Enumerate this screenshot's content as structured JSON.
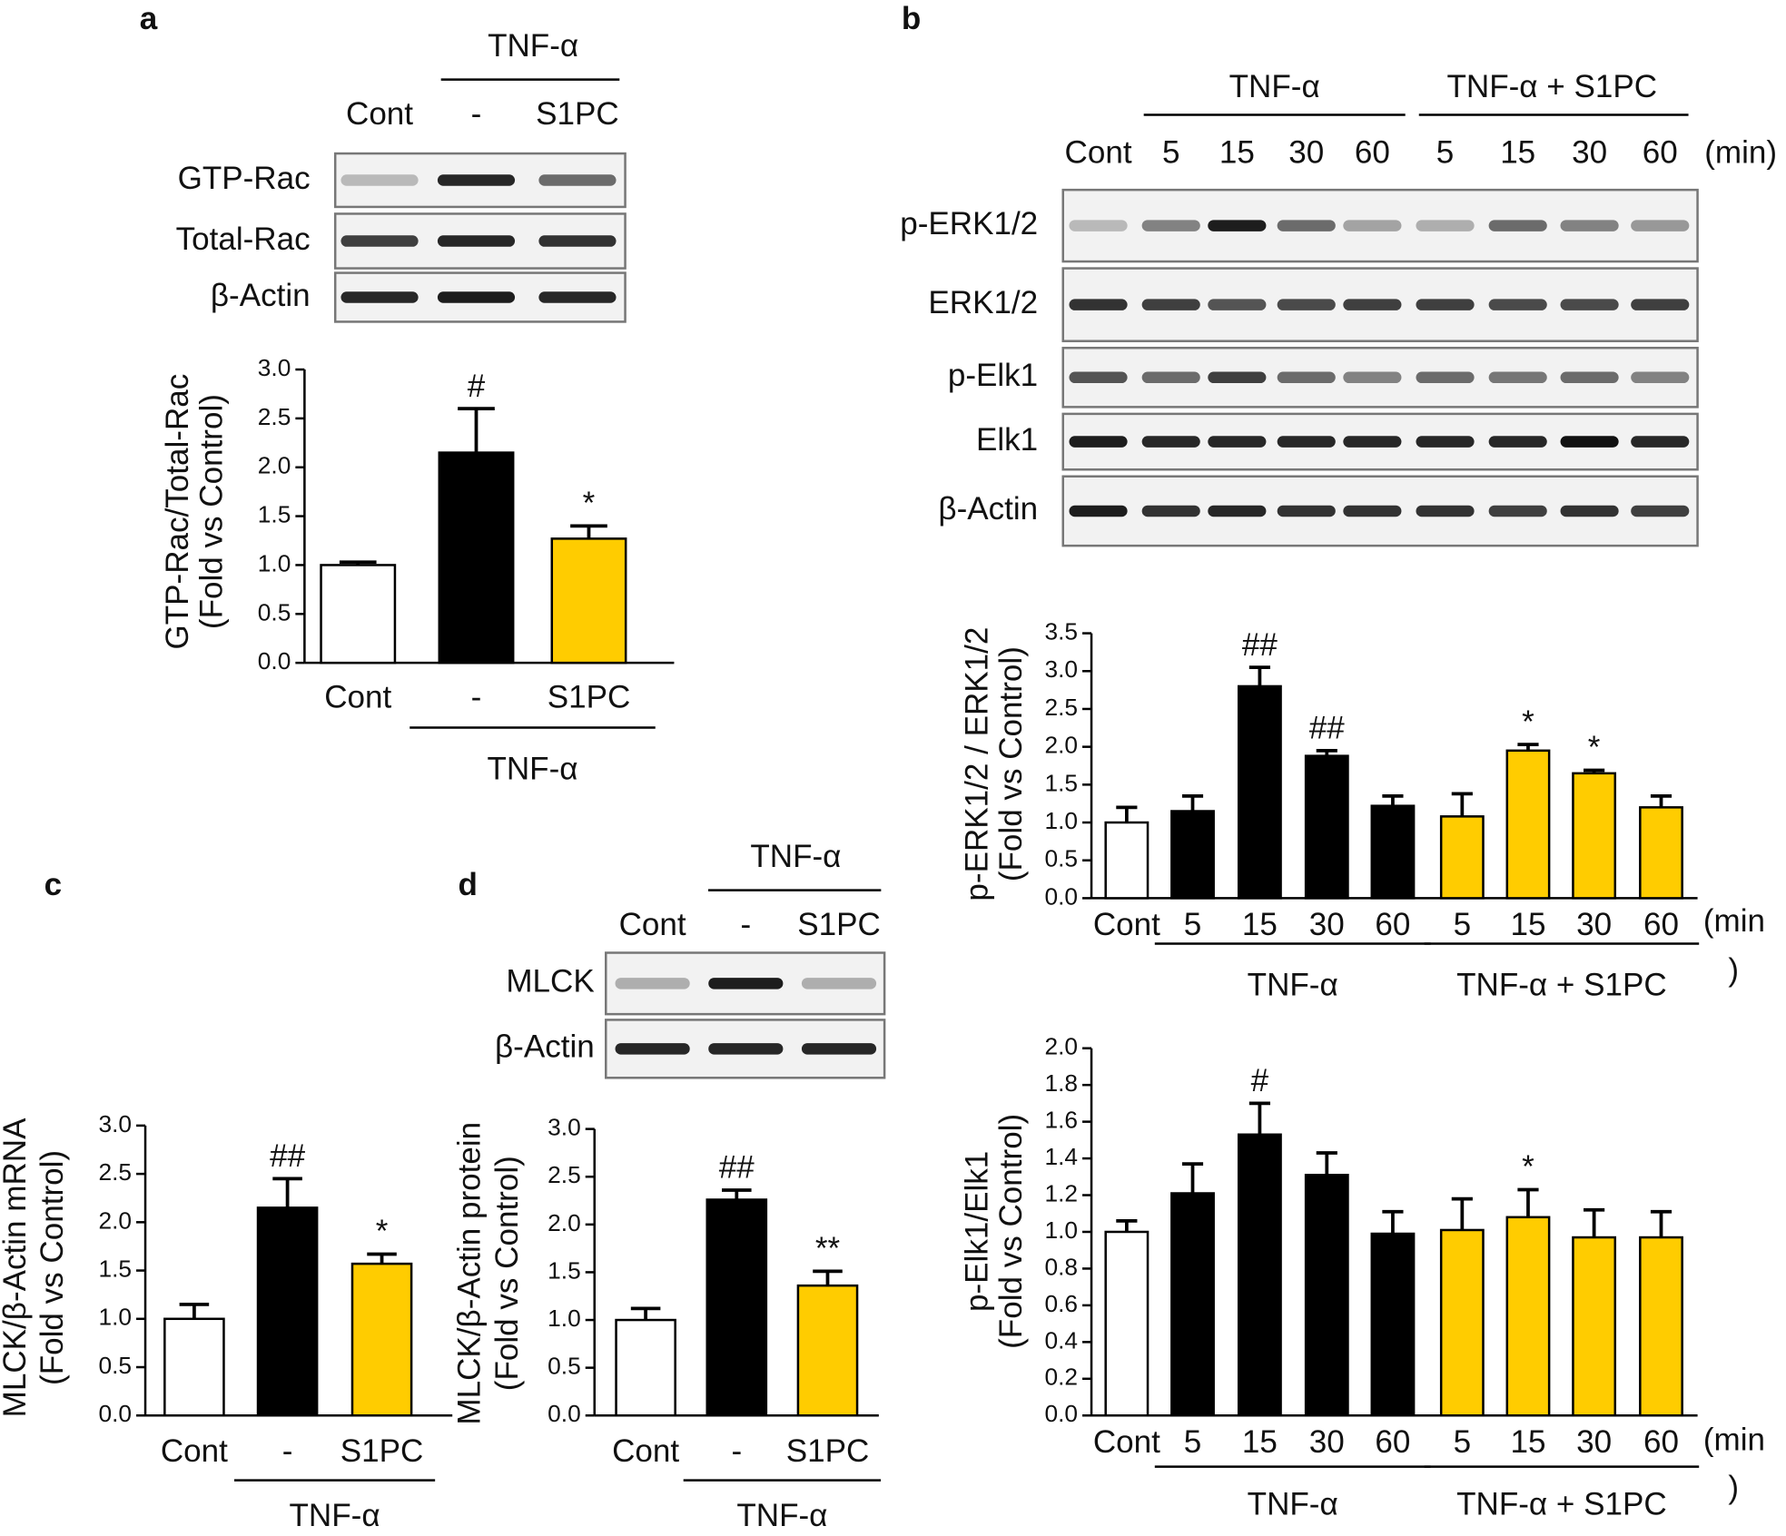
{
  "panels": [
    "a",
    "b",
    "c",
    "d"
  ],
  "blots": [
    {
      "groups": [
        "TNF-α"
      ],
      "lanes": [
        "Cont",
        "-",
        "S1PC"
      ],
      "rows": [
        "GTP-Rac",
        "Total-Rac",
        "β-Actin"
      ]
    },
    {
      "groups": [
        "TNF-α",
        "TNF-α + S1PC"
      ],
      "lanes": [
        "Cont",
        "5",
        "15",
        "30",
        "60",
        "5",
        "15",
        "30",
        "60"
      ],
      "unit": "(min)",
      "rows": [
        "p-ERK1/2",
        "ERK1/2",
        "p-Elk1",
        "Elk1",
        "β-Actin"
      ]
    },
    {
      "groups": [
        "TNF-α"
      ],
      "lanes": [
        "Cont",
        "-",
        "S1PC"
      ],
      "rows": [
        "MLCK",
        "β-Actin"
      ]
    }
  ],
  "chart_data": [
    {
      "type": "bar",
      "ylabel": [
        "GTP-Rac/Total-Rac",
        "(Fold vs Control)"
      ],
      "categories": [
        "Cont",
        "-",
        "S1PC"
      ],
      "values": [
        1.0,
        2.15,
        1.27
      ],
      "errors": [
        0.03,
        0.45,
        0.13
      ],
      "annotations": [
        null,
        "#",
        "*"
      ],
      "colors": [
        "#ffffff",
        "#000000",
        "#ffcc00"
      ],
      "groups": [
        {
          "label": "TNF-α",
          "colors": [
            "#000000",
            "#ffcc00"
          ]
        }
      ],
      "ylim": [
        0,
        3
      ],
      "yticks": [
        {
          "value": 0,
          "label": "0.0"
        },
        {
          "value": 0.5,
          "label": "0.5"
        },
        {
          "value": 1,
          "label": "1.0"
        },
        {
          "value": 1.5,
          "label": "1.5"
        },
        {
          "value": 2,
          "label": "2.0"
        },
        {
          "value": 2.5,
          "label": "2.5"
        },
        {
          "value": 3,
          "label": "3.0"
        }
      ]
    },
    {
      "type": "bar",
      "ylabel": [
        "p-ERK1/2 / ERK1/2",
        "(Fold vs Control)"
      ],
      "categories": [
        "Cont",
        "5",
        "15",
        "30",
        "60",
        "5",
        "15",
        "30",
        "60"
      ],
      "values": [
        1.0,
        1.15,
        2.8,
        1.88,
        1.22,
        1.08,
        1.95,
        1.65,
        1.2
      ],
      "errors": [
        0.2,
        0.2,
        0.25,
        0.07,
        0.13,
        0.3,
        0.08,
        0.04,
        0.15
      ],
      "annotations": [
        null,
        null,
        "##",
        "##",
        null,
        null,
        "*",
        "*",
        null
      ],
      "colors": [
        "#ffffff",
        "#000000",
        "#000000",
        "#000000",
        "#000000",
        "#ffcc00",
        "#ffcc00",
        "#ffcc00",
        "#ffcc00"
      ],
      "groups": [
        {
          "label": "TNF-α",
          "colors": [
            "#000000"
          ]
        },
        {
          "label": "TNF-α + S1PC",
          "colors": [
            "#ffcc00"
          ]
        }
      ],
      "x_unit": [
        "(min",
        ")"
      ],
      "ylim": [
        0,
        3.5
      ],
      "yticks": [
        {
          "value": 0,
          "label": "0.0"
        },
        {
          "value": 0.5,
          "label": "0.5"
        },
        {
          "value": 1,
          "label": "1.0"
        },
        {
          "value": 1.5,
          "label": "1.5"
        },
        {
          "value": 2,
          "label": "2.0"
        },
        {
          "value": 2.5,
          "label": "2.5"
        },
        {
          "value": 3,
          "label": "3.0"
        },
        {
          "value": 3.5,
          "label": "3.5"
        }
      ]
    },
    {
      "type": "bar",
      "ylabel": [
        "p-Elk1/Elk1",
        "(Fold vs Control)"
      ],
      "categories": [
        "Cont",
        "5",
        "15",
        "30",
        "60",
        "5",
        "15",
        "30",
        "60"
      ],
      "values": [
        1.0,
        1.21,
        1.53,
        1.31,
        0.99,
        1.01,
        1.08,
        0.97,
        0.97
      ],
      "errors": [
        0.06,
        0.16,
        0.17,
        0.12,
        0.12,
        0.17,
        0.15,
        0.15,
        0.14
      ],
      "annotations": [
        null,
        null,
        "#",
        null,
        null,
        null,
        "*",
        null,
        null
      ],
      "colors": [
        "#ffffff",
        "#000000",
        "#000000",
        "#000000",
        "#000000",
        "#ffcc00",
        "#ffcc00",
        "#ffcc00",
        "#ffcc00"
      ],
      "groups": [
        {
          "label": "TNF-α",
          "colors": [
            "#000000"
          ]
        },
        {
          "label": "TNF-α + S1PC",
          "colors": [
            "#ffcc00"
          ]
        }
      ],
      "x_unit": [
        "(min",
        ")"
      ],
      "ylim": [
        0,
        2
      ],
      "yticks": [
        {
          "value": 0,
          "label": "0.0"
        },
        {
          "value": 0.2,
          "label": "0.2"
        },
        {
          "value": 0.4,
          "label": "0.4"
        },
        {
          "value": 0.6,
          "label": "0.6"
        },
        {
          "value": 0.8,
          "label": "0.8"
        },
        {
          "value": 1,
          "label": "1.0"
        },
        {
          "value": 1.2,
          "label": "1.2"
        },
        {
          "value": 1.4,
          "label": "1.4"
        },
        {
          "value": 1.6,
          "label": "1.6"
        },
        {
          "value": 1.8,
          "label": "1.8"
        },
        {
          "value": 2,
          "label": "2.0"
        }
      ]
    },
    {
      "type": "bar",
      "ylabel": [
        "MLCK/β-Actin mRNA",
        "(Fold vs Control)"
      ],
      "categories": [
        "Cont",
        "-",
        "S1PC"
      ],
      "values": [
        1.0,
        2.15,
        1.57
      ],
      "errors": [
        0.15,
        0.3,
        0.1
      ],
      "annotations": [
        null,
        "##",
        "*"
      ],
      "colors": [
        "#ffffff",
        "#000000",
        "#ffcc00"
      ],
      "groups": [
        {
          "label": "TNF-α",
          "colors": [
            "#000000",
            "#ffcc00"
          ]
        }
      ],
      "ylim": [
        0,
        3
      ],
      "yticks": [
        {
          "value": 0,
          "label": "0.0"
        },
        {
          "value": 0.5,
          "label": "0.5"
        },
        {
          "value": 1,
          "label": "1.0"
        },
        {
          "value": 1.5,
          "label": "1.5"
        },
        {
          "value": 2,
          "label": "2.0"
        },
        {
          "value": 2.5,
          "label": "2.5"
        },
        {
          "value": 3,
          "label": "3.0"
        }
      ]
    },
    {
      "type": "bar",
      "ylabel": [
        "MLCK/β-Actin protein",
        "(Fold vs Control)"
      ],
      "categories": [
        "Cont",
        "-",
        "S1PC"
      ],
      "values": [
        1.0,
        2.26,
        1.36
      ],
      "errors": [
        0.12,
        0.1,
        0.15
      ],
      "annotations": [
        null,
        "##",
        "**"
      ],
      "colors": [
        "#ffffff",
        "#000000",
        "#ffcc00"
      ],
      "groups": [
        {
          "label": "TNF-α",
          "colors": [
            "#000000",
            "#ffcc00"
          ]
        }
      ],
      "ylim": [
        0,
        3
      ],
      "yticks": [
        {
          "value": 0,
          "label": "0.0"
        },
        {
          "value": 0.5,
          "label": "0.5"
        },
        {
          "value": 1,
          "label": "1.0"
        },
        {
          "value": 1.5,
          "label": "1.5"
        },
        {
          "value": 2,
          "label": "2.0"
        },
        {
          "value": 2.5,
          "label": "2.5"
        },
        {
          "value": 3,
          "label": "3.0"
        }
      ]
    }
  ]
}
